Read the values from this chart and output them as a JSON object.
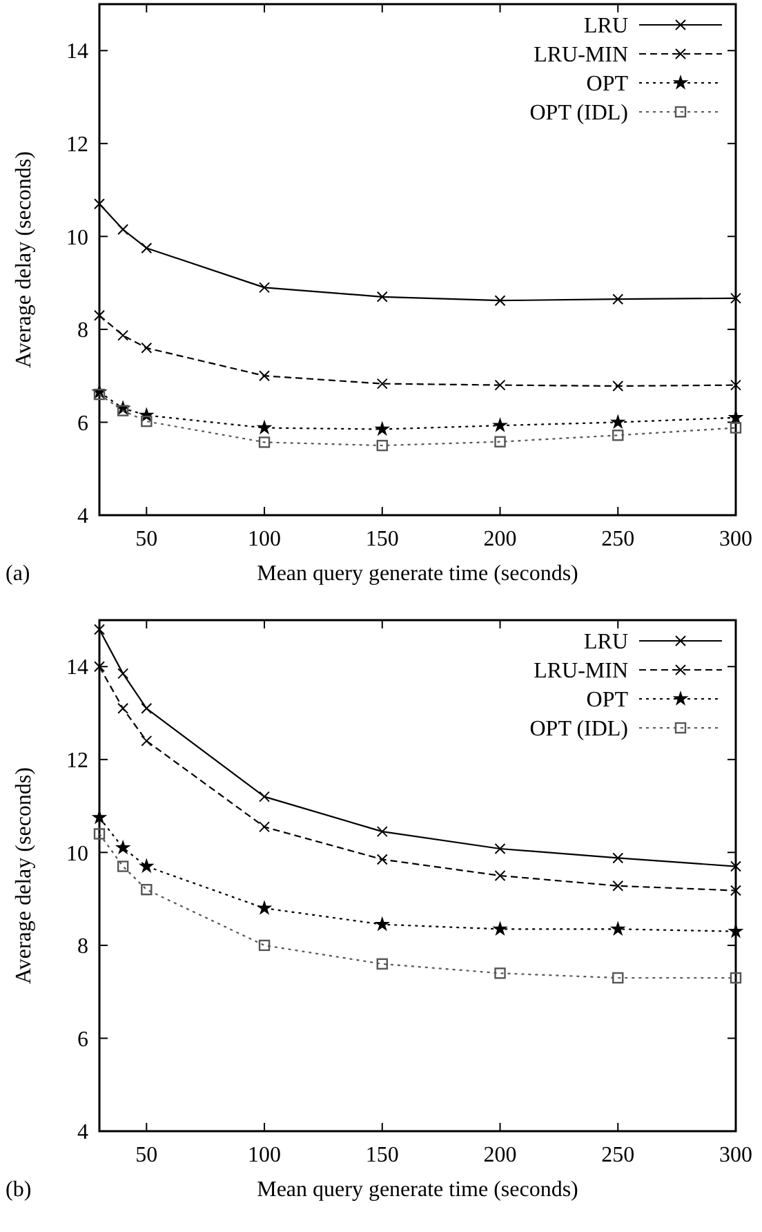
{
  "chart_data": [
    {
      "type": "line",
      "xlabel": "Mean query generate time (seconds)",
      "ylabel": "Average delay (seconds)",
      "annotations": [
        "(a)"
      ],
      "x": [
        30,
        40,
        50,
        100,
        150,
        200,
        250,
        300
      ],
      "xlim": [
        30,
        300
      ],
      "xticks": [
        50,
        100,
        150,
        200,
        250,
        300
      ],
      "ylim": [
        4,
        15
      ],
      "yticks": [
        4,
        6,
        8,
        10,
        12,
        14
      ],
      "grid": false,
      "legend": "top right",
      "series": [
        {
          "name": "LRU",
          "color": "#000000",
          "marker": "cross",
          "line_style": "solid",
          "values": [
            10.7,
            10.15,
            9.75,
            8.9,
            8.7,
            8.62,
            8.65,
            8.67
          ]
        },
        {
          "name": "LRU-MIN",
          "color": "#000000",
          "marker": "cross",
          "line_style": "dashed",
          "values": [
            8.3,
            7.87,
            7.6,
            7.0,
            6.83,
            6.8,
            6.78,
            6.8
          ]
        },
        {
          "name": "OPT",
          "color": "#000000",
          "marker": "star",
          "line_style": "dotted",
          "values": [
            6.65,
            6.3,
            6.15,
            5.88,
            5.85,
            5.93,
            6.0,
            6.1
          ]
        },
        {
          "name": "OPT (IDL)",
          "color": "#555555",
          "marker": "square",
          "line_style": "dotted",
          "values": [
            6.6,
            6.25,
            6.02,
            5.57,
            5.5,
            5.58,
            5.72,
            5.88
          ]
        }
      ]
    },
    {
      "type": "line",
      "xlabel": "Mean query generate time (seconds)",
      "ylabel": "Average delay (seconds)",
      "annotations": [
        "(b)"
      ],
      "x": [
        30,
        40,
        50,
        100,
        150,
        200,
        250,
        300
      ],
      "xlim": [
        30,
        300
      ],
      "xticks": [
        50,
        100,
        150,
        200,
        250,
        300
      ],
      "ylim": [
        4,
        15
      ],
      "yticks": [
        4,
        6,
        8,
        10,
        12,
        14
      ],
      "grid": false,
      "legend": "top right",
      "series": [
        {
          "name": "LRU",
          "color": "#000000",
          "marker": "cross",
          "line_style": "solid",
          "values": [
            14.8,
            13.85,
            13.1,
            11.2,
            10.45,
            10.08,
            9.88,
            9.7
          ]
        },
        {
          "name": "LRU-MIN",
          "color": "#000000",
          "marker": "cross",
          "line_style": "dashed",
          "values": [
            14.0,
            13.1,
            12.4,
            10.55,
            9.85,
            9.5,
            9.28,
            9.18
          ]
        },
        {
          "name": "OPT",
          "color": "#000000",
          "marker": "star",
          "line_style": "dotted",
          "values": [
            10.75,
            10.1,
            9.7,
            8.8,
            8.45,
            8.35,
            8.35,
            8.3
          ]
        },
        {
          "name": "OPT (IDL)",
          "color": "#555555",
          "marker": "square",
          "line_style": "dotted",
          "values": [
            10.4,
            9.7,
            9.2,
            8.0,
            7.6,
            7.4,
            7.3,
            7.3
          ]
        }
      ]
    }
  ]
}
